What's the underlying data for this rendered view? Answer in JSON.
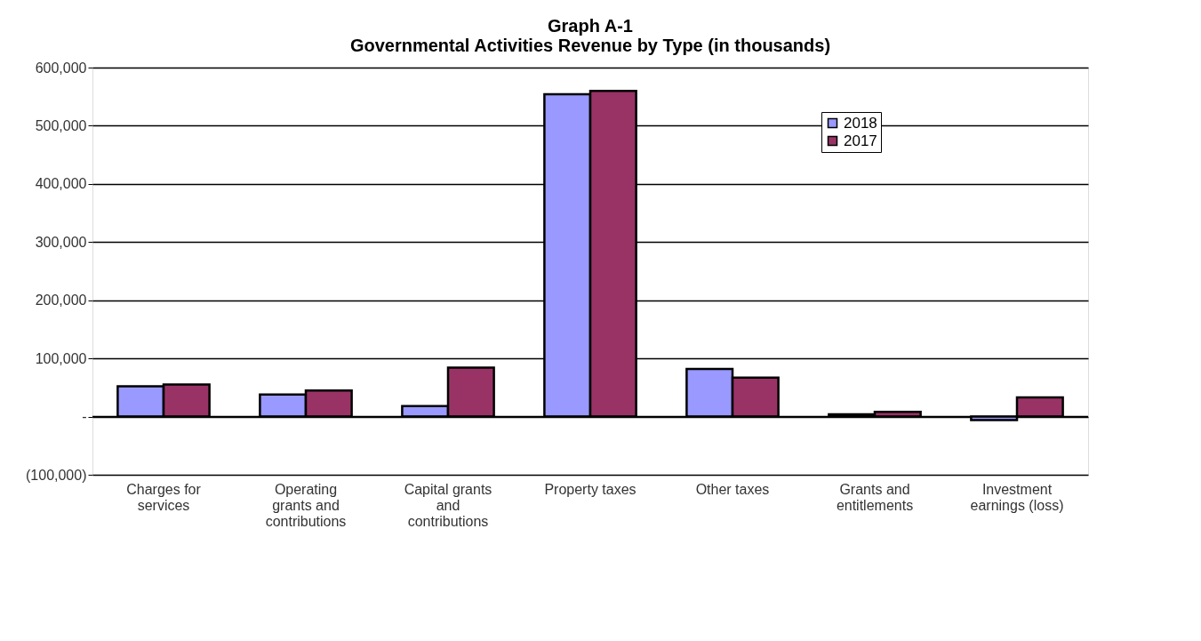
{
  "chart_data": {
    "type": "bar",
    "title": [
      "Graph A-1",
      "Governmental Activities  Revenue by Type (in thousands)"
    ],
    "categories": [
      "Charges for services",
      "Operating grants and contributions",
      "Capital grants and contributions",
      "Property taxes",
      "Other taxes",
      "Grants and entitlements",
      "Investment earnings (loss)"
    ],
    "series": [
      {
        "name": "2018",
        "color": "#9999ff",
        "values": [
          52000,
          38000,
          18000,
          554000,
          82000,
          4000,
          -6000
        ]
      },
      {
        "name": "2017",
        "color": "#993366",
        "values": [
          55000,
          45000,
          84000,
          560000,
          67000,
          8000,
          33000
        ]
      }
    ],
    "ylim": [
      -100000,
      600000
    ],
    "yticks": [
      {
        "value": -100000,
        "label": "(100,000)"
      },
      {
        "value": 0,
        "label": "-"
      },
      {
        "value": 100000,
        "label": "100,000"
      },
      {
        "value": 200000,
        "label": "200,000"
      },
      {
        "value": 300000,
        "label": "300,000"
      },
      {
        "value": 400000,
        "label": "400,000"
      },
      {
        "value": 500000,
        "label": "500,000"
      },
      {
        "value": 600000,
        "label": "600,000"
      }
    ],
    "grid": "y",
    "legend": "top right"
  }
}
